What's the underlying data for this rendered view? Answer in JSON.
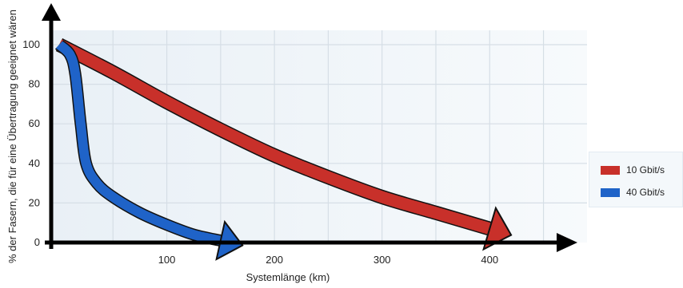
{
  "chart_data": {
    "type": "line",
    "xlabel": "Systemlänge (km)",
    "ylabel": "% der Fasern, die für eine Übertragung geeignet wären",
    "xlim": [
      0,
      460
    ],
    "ylim": [
      0,
      110
    ],
    "x_ticks": [
      100,
      200,
      300,
      400
    ],
    "y_ticks": [
      0,
      20,
      40,
      60,
      80,
      100
    ],
    "grid": true,
    "legend_position": "right",
    "series": [
      {
        "name": "10 Gbit/s",
        "color": "#c8302a",
        "x": [
          0,
          50,
          100,
          150,
          200,
          250,
          300,
          350,
          400
        ],
        "y": [
          100,
          86,
          71,
          57,
          44,
          33,
          23,
          15,
          7
        ]
      },
      {
        "name": "40 Gbit/s",
        "color": "#1f63c8",
        "x": [
          0,
          10,
          15,
          20,
          25,
          35,
          50,
          75,
          100,
          125,
          150
        ],
        "y": [
          100,
          95,
          85,
          60,
          40,
          30,
          23,
          15,
          9,
          4,
          1
        ]
      }
    ]
  }
}
